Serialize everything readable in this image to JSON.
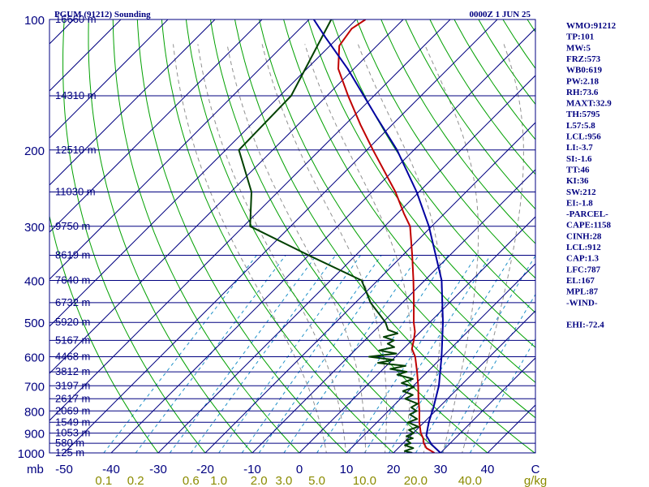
{
  "header": {
    "station": "PGUM (91212) Sounding",
    "time": "0000Z  1 JUN 25"
  },
  "colors": {
    "frame": "#000080",
    "temperature": "#c00000",
    "dewpoint": "#004000",
    "parcel": "#0000a0",
    "dry_adiabat": "#00a000",
    "moist_adiabat": "#909090",
    "mixing_ratio": "#1e90c8",
    "mixing_ratio_label": "#8b8b00"
  },
  "indices": [
    "WMO:91212",
    "TP:101",
    "MW:5",
    "FRZ:573",
    "WB0:619",
    "PW:2.18",
    "RH:73.6",
    "MAXT:32.9",
    "TH:5795",
    "L57:5.8",
    "LCL:956",
    "LI:-3.7",
    "SI:-1.6",
    "TT:46",
    "KI:36",
    "SW:212",
    "EI:-1.8",
    "-PARCEL-",
    "CAPE:1158",
    "CINH:28",
    "LCL:912",
    "CAP:1.3",
    "LFC:787",
    "EL:167",
    "MPL:87",
    "-WIND-",
    "",
    "EHI:-72.4"
  ],
  "chart_data": {
    "type": "line",
    "title": "PGUM (91212) Sounding",
    "subtitle": "0000Z  1 JUN 25",
    "xlabel": "",
    "ylabel": "mb",
    "xlim": [
      -50,
      50
    ],
    "ylim": [
      1000,
      100
    ],
    "y_scale": "log",
    "skew": "temperature lines skewed 45 degrees",
    "grid": true,
    "x_ticks": [
      "-50",
      "-40",
      "-30",
      "-20",
      "-10",
      "0",
      "10",
      "20",
      "30",
      "40",
      "C"
    ],
    "y_ticks": [
      "100",
      "200",
      "300",
      "400",
      "500",
      "600",
      "700",
      "800",
      "900",
      "1000"
    ],
    "mixing_ratio_labels": [
      "0.1",
      "0.2",
      "0.6",
      "1.0",
      "2.0",
      "3.0",
      "5.0",
      "10.0",
      "20.0",
      "40.0",
      "g/kg"
    ],
    "height_labels": [
      {
        "p": 100,
        "label": "16660 m"
      },
      {
        "p": 150,
        "label": "14310 m"
      },
      {
        "p": 200,
        "label": "12510 m"
      },
      {
        "p": 250,
        "label": "11030 m"
      },
      {
        "p": 300,
        "label": "9750 m"
      },
      {
        "p": 350,
        "label": "8619 m"
      },
      {
        "p": 400,
        "label": "7640 m"
      },
      {
        "p": 450,
        "label": "6732 m"
      },
      {
        "p": 500,
        "label": "5920 m"
      },
      {
        "p": 550,
        "label": "5167 m"
      },
      {
        "p": 600,
        "label": "4468 m"
      },
      {
        "p": 650,
        "label": "3812 m"
      },
      {
        "p": 700,
        "label": "3197 m"
      },
      {
        "p": 750,
        "label": "2617 m"
      },
      {
        "p": 800,
        "label": "2069 m"
      },
      {
        "p": 850,
        "label": "1549 m"
      },
      {
        "p": 900,
        "label": "1053 m"
      },
      {
        "p": 950,
        "label": "580 m"
      },
      {
        "p": 1000,
        "label": "125 m"
      }
    ],
    "series": [
      {
        "key": "temperature",
        "points": [
          [
            1000,
            28.7
          ],
          [
            975,
            26.0
          ],
          [
            950,
            24.4
          ],
          [
            925,
            23.2
          ],
          [
            900,
            21.6
          ],
          [
            850,
            19.0
          ],
          [
            800,
            16.6
          ],
          [
            750,
            13.8
          ],
          [
            700,
            11.0
          ],
          [
            650,
            7.8
          ],
          [
            600,
            4.2
          ],
          [
            575,
            1.8
          ],
          [
            550,
            0.4
          ],
          [
            525,
            -1.2
          ],
          [
            500,
            -3.4
          ],
          [
            450,
            -7.6
          ],
          [
            400,
            -12.4
          ],
          [
            350,
            -18.0
          ],
          [
            300,
            -24.6
          ],
          [
            280,
            -28.7
          ],
          [
            250,
            -35.0
          ],
          [
            200,
            -48.7
          ],
          [
            175,
            -56.7
          ],
          [
            150,
            -65.5
          ],
          [
            130,
            -73.3
          ],
          [
            115,
            -78.0
          ],
          [
            105,
            -79.0
          ],
          [
            100,
            -78.0
          ]
        ]
      },
      {
        "key": "dewpoint",
        "points": [
          [
            1000,
            24.0
          ],
          [
            990,
            22.0
          ],
          [
            975,
            23.2
          ],
          [
            960,
            20.8
          ],
          [
            950,
            21.6
          ],
          [
            935,
            20.1
          ],
          [
            925,
            21.0
          ],
          [
            915,
            19.2
          ],
          [
            900,
            20.1
          ],
          [
            885,
            18.4
          ],
          [
            870,
            19.7
          ],
          [
            850,
            16.6
          ],
          [
            835,
            17.8
          ],
          [
            815,
            15.3
          ],
          [
            800,
            16.0
          ],
          [
            785,
            14.1
          ],
          [
            770,
            14.7
          ],
          [
            750,
            11.0
          ],
          [
            735,
            11.8
          ],
          [
            720,
            8.9
          ],
          [
            705,
            10.4
          ],
          [
            690,
            6.9
          ],
          [
            675,
            8.4
          ],
          [
            660,
            4.2
          ],
          [
            650,
            5.6
          ],
          [
            640,
            1.5
          ],
          [
            630,
            4.1
          ],
          [
            620,
            -2.4
          ],
          [
            610,
            0.3
          ],
          [
            600,
            -5.6
          ],
          [
            590,
            -0.5
          ],
          [
            580,
            -4.8
          ],
          [
            570,
            -2.3
          ],
          [
            560,
            -4.4
          ],
          [
            550,
            -3.8
          ],
          [
            540,
            -6.7
          ],
          [
            530,
            -4.5
          ],
          [
            520,
            -7.3
          ],
          [
            500,
            -9.4
          ],
          [
            450,
            -16.8
          ],
          [
            400,
            -23.4
          ],
          [
            350,
            -40.0
          ],
          [
            300,
            -58.6
          ],
          [
            250,
            -65.6
          ],
          [
            200,
            -77.2
          ],
          [
            150,
            -77.6
          ],
          [
            100,
            -85.3
          ]
        ]
      },
      {
        "key": "parcel",
        "points": [
          [
            1000,
            30.0
          ],
          [
            956,
            26.3
          ],
          [
            912,
            23.3
          ],
          [
            850,
            21.0
          ],
          [
            787,
            18.9
          ],
          [
            700,
            15.4
          ],
          [
            600,
            9.8
          ],
          [
            500,
            2.8
          ],
          [
            400,
            -6.4
          ],
          [
            300,
            -20.6
          ],
          [
            250,
            -30.5
          ],
          [
            200,
            -43.6
          ],
          [
            167,
            -55.3
          ],
          [
            130,
            -71.3
          ],
          [
            110,
            -82.7
          ],
          [
            100,
            -89.0
          ]
        ]
      }
    ]
  }
}
